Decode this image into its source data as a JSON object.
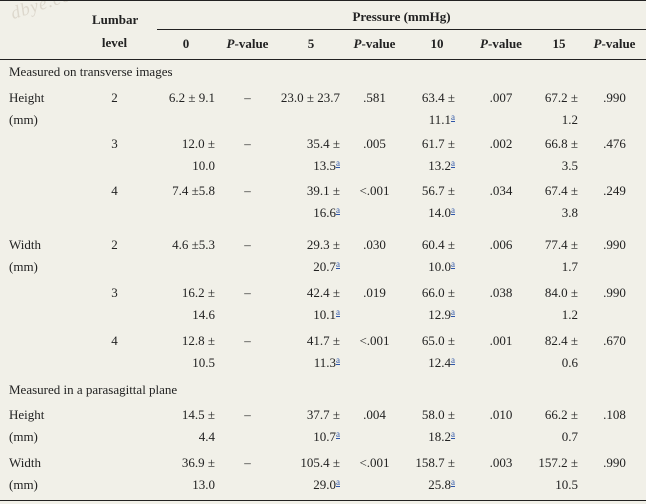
{
  "watermark": "dbye.com",
  "header": {
    "lumbar_level": [
      "Lumbar",
      "level"
    ],
    "pressure_group": "Pressure (mmHg)",
    "cols": [
      "0",
      "P-value",
      "5",
      "P-value",
      "10",
      "P-value",
      "15",
      "P-value"
    ]
  },
  "sections": [
    "Measured on transverse images",
    "Measured in a parasagittal plane"
  ],
  "rows": [
    {
      "label": [
        "Height",
        "(mm)"
      ],
      "level": "2",
      "v0": [
        "6.2 ± 9.1",
        ""
      ],
      "p0": "–",
      "v5": [
        "23.0 ± 23.7",
        ""
      ],
      "p5": ".581",
      "v10": [
        "63.4 ±",
        "11.1"
      ],
      "v10sup": "a",
      "p10": ".007",
      "v15": [
        "67.2 ±",
        "1.2"
      ],
      "p15": ".990"
    },
    {
      "label": [
        "",
        ""
      ],
      "level": "3",
      "v0": [
        "12.0 ±",
        "10.0"
      ],
      "p0": "–",
      "v5": [
        "35.4 ±",
        "13.5"
      ],
      "v5sup": "a",
      "p5": ".005",
      "v10": [
        "61.7 ±",
        "13.2"
      ],
      "v10sup": "a",
      "p10": ".002",
      "v15": [
        "66.8 ±",
        "3.5"
      ],
      "p15": ".476"
    },
    {
      "label": [
        "",
        ""
      ],
      "level": "4",
      "v0": [
        "7.4 ±5.8",
        ""
      ],
      "p0": "–",
      "v5": [
        "39.1 ±",
        "16.6"
      ],
      "v5sup": "a",
      "p5": "<.001",
      "v10": [
        "56.7 ±",
        "14.0"
      ],
      "v10sup": "a",
      "p10": ".034",
      "v15": [
        "67.4 ±",
        "3.8"
      ],
      "p15": ".249"
    },
    {
      "label": [
        "Width",
        "(mm)"
      ],
      "level": "2",
      "v0": [
        "4.6 ±5.3",
        ""
      ],
      "p0": "–",
      "v5": [
        "29.3 ±",
        "20.7"
      ],
      "v5sup": "a",
      "p5": ".030",
      "v10": [
        "60.4 ±",
        "10.0"
      ],
      "v10sup": "a",
      "p10": ".006",
      "v15": [
        "77.4 ±",
        "1.7"
      ],
      "p15": ".990"
    },
    {
      "label": [
        "",
        ""
      ],
      "level": "3",
      "v0": [
        "16.2 ±",
        "14.6"
      ],
      "p0": "–",
      "v5": [
        "42.4 ±",
        "10.1"
      ],
      "v5sup": "a",
      "p5": ".019",
      "v10": [
        "66.0 ±",
        "12.9"
      ],
      "v10sup": "a",
      "p10": ".038",
      "v15": [
        "84.0 ±",
        "1.2"
      ],
      "p15": ".990"
    },
    {
      "label": [
        "",
        ""
      ],
      "level": "4",
      "v0": [
        "12.8 ±",
        "10.5"
      ],
      "p0": "–",
      "v5": [
        "41.7 ±",
        "11.3"
      ],
      "v5sup": "a",
      "p5": "<.001",
      "v10": [
        "65.0 ±",
        "12.4"
      ],
      "v10sup": "a",
      "p10": ".001",
      "v15": [
        "82.4 ±",
        "0.6"
      ],
      "p15": ".670"
    },
    {
      "label": [
        "Height",
        "(mm)"
      ],
      "level": "",
      "v0": [
        "14.5 ±",
        "4.4"
      ],
      "p0": "–",
      "v5": [
        "37.7 ±",
        "10.7"
      ],
      "v5sup": "a",
      "p5": ".004",
      "v10": [
        "58.0 ±",
        "18.2"
      ],
      "v10sup": "a",
      "p10": ".010",
      "v15": [
        "66.2 ±",
        "0.7"
      ],
      "p15": ".108"
    },
    {
      "label": [
        "Width",
        "(mm)"
      ],
      "level": "",
      "v0": [
        "36.9 ±",
        "13.0"
      ],
      "p0": "–",
      "v5": [
        "105.4 ±",
        "29.0"
      ],
      "v5sup": "a",
      "p5": "<.001",
      "v10": [
        "158.7 ±",
        "25.8"
      ],
      "v10sup": "a",
      "p10": ".003",
      "v15": [
        "157.2 ±",
        "10.5"
      ],
      "p15": ".990"
    }
  ]
}
